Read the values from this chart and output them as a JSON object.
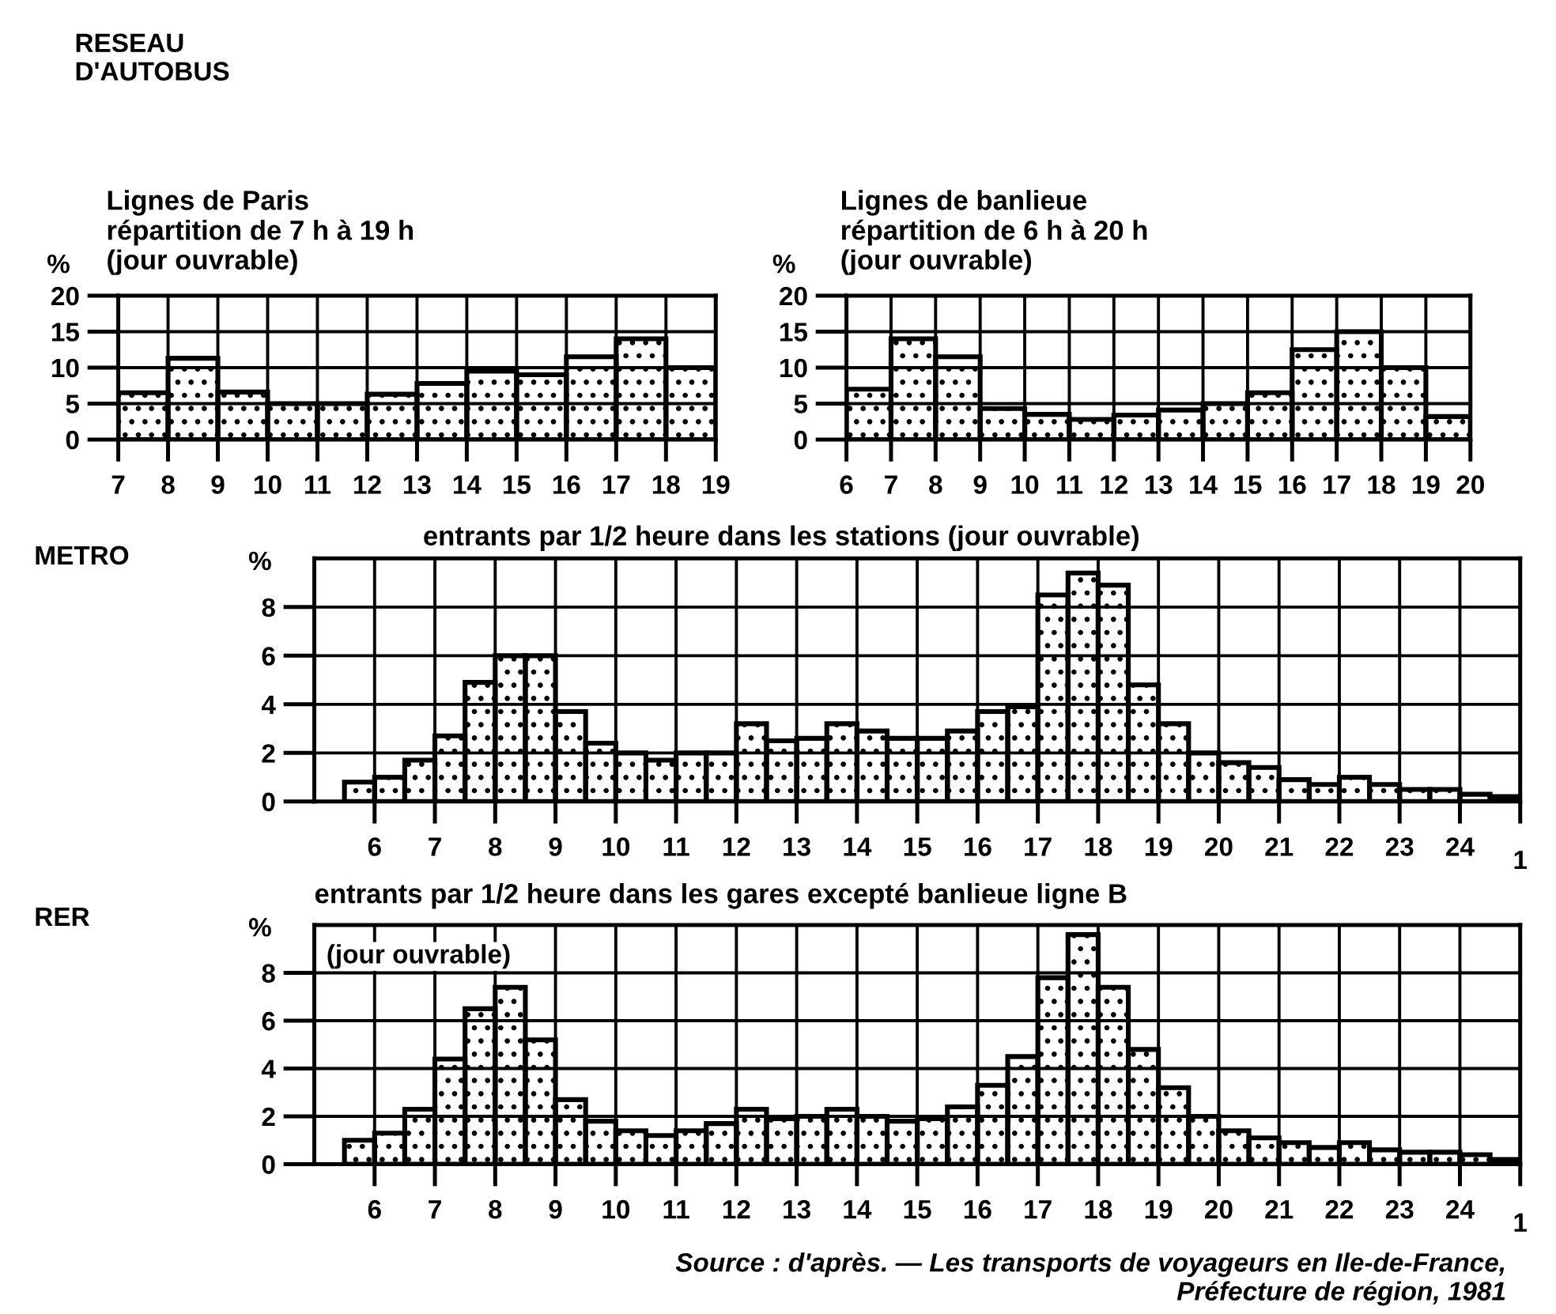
{
  "chart_data": [
    {
      "type": "histogram",
      "title": "Lignes de Paris\nrépartition de 7 h à 19 h\n(jour ouvrable)",
      "ylabel": "%",
      "annotations": [
        "RESEAU\nD'AUTOBUS"
      ],
      "bins": [
        7,
        8,
        9,
        10,
        11,
        12,
        13,
        14,
        15,
        16,
        17,
        18,
        19
      ],
      "values": [
        6.5,
        11.3,
        6.6,
        5,
        5,
        6.3,
        7.8,
        9.5,
        9,
        11.5,
        14,
        10
      ],
      "color": "#000000",
      "xlim": [
        7,
        19
      ],
      "xticks": [
        7,
        8,
        9,
        10,
        11,
        12,
        13,
        14,
        15,
        16,
        17,
        18,
        19
      ],
      "ylim": [
        0,
        20
      ],
      "yticks": [
        0,
        5,
        10,
        15,
        20
      ],
      "grid": true
    },
    {
      "type": "histogram",
      "title": "Lignes de banlieue\nrépartition de 6 h à 20 h\n(jour ouvrable)",
      "ylabel": "%",
      "bins": [
        6,
        7,
        8,
        9,
        10,
        11,
        12,
        13,
        14,
        15,
        16,
        17,
        18,
        19,
        20
      ],
      "values": [
        7,
        14,
        11.5,
        4.3,
        3.5,
        2.8,
        3.4,
        4.1,
        5,
        6.5,
        12.5,
        15,
        10,
        3.2
      ],
      "color": "#000000",
      "xlim": [
        6,
        20
      ],
      "xticks": [
        6,
        7,
        8,
        9,
        10,
        11,
        12,
        13,
        14,
        15,
        16,
        17,
        18,
        19,
        20
      ],
      "ylim": [
        0,
        20
      ],
      "yticks": [
        0,
        5,
        10,
        15,
        20
      ],
      "grid": true
    },
    {
      "type": "histogram",
      "title": "entrants par 1/2 heure dans les stations (jour ouvrable)",
      "ylabel": "%",
      "annotations": [
        "METRO",
        {
          "text": "1",
          "x": 25,
          "y": 0
        }
      ],
      "bins": [
        5.5,
        6,
        6.5,
        7,
        7.5,
        8,
        8.5,
        9,
        9.5,
        10,
        10.5,
        11,
        11.5,
        12,
        12.5,
        13,
        13.5,
        14,
        14.5,
        15,
        15.5,
        16,
        16.5,
        17,
        17.5,
        18,
        18.5,
        19,
        19.5,
        20,
        20.5,
        21,
        21.5,
        22,
        22.5,
        23,
        23.5,
        24,
        24.5,
        25
      ],
      "values": [
        0.8,
        1.0,
        1.7,
        2.7,
        4.9,
        6.0,
        6.0,
        3.7,
        2.4,
        2.0,
        1.7,
        2.0,
        2.0,
        3.2,
        2.5,
        2.6,
        3.2,
        2.9,
        2.6,
        2.6,
        2.9,
        3.7,
        3.9,
        8.5,
        9.4,
        8.9,
        4.8,
        3.2,
        2.0,
        1.6,
        1.4,
        0.9,
        0.7,
        1.0,
        0.7,
        0.5,
        0.5,
        0.3,
        0.2
      ],
      "color": "#000000",
      "xlim": [
        5,
        25
      ],
      "xticks": [
        6,
        7,
        8,
        9,
        10,
        11,
        12,
        13,
        14,
        15,
        16,
        17,
        18,
        19,
        20,
        21,
        22,
        23,
        24,
        {
          "value": 25,
          "label": null
        }
      ],
      "ylim": [
        0,
        10
      ],
      "yticks": [
        0,
        2,
        4,
        6,
        8
      ],
      "grid": true
    },
    {
      "type": "histogram",
      "title": "entrants par 1/2 heure dans les gares excepté banlieue ligne B",
      "ylabel": "%",
      "annotations": [
        "RER",
        "(jour ouvrable)",
        "Source : d'après. — Les transports de voyageurs en Ile-de-France,\nPréfecture de région, 1981",
        {
          "text": "1",
          "x": 25,
          "y": 0
        }
      ],
      "bins": [
        5.5,
        6,
        6.5,
        7,
        7.5,
        8,
        8.5,
        9,
        9.5,
        10,
        10.5,
        11,
        11.5,
        12,
        12.5,
        13,
        13.5,
        14,
        14.5,
        15,
        15.5,
        16,
        16.5,
        17,
        17.5,
        18,
        18.5,
        19,
        19.5,
        20,
        20.5,
        21,
        21.5,
        22,
        22.5,
        23,
        23.5,
        24,
        24.5,
        25
      ],
      "values": [
        1.0,
        1.3,
        2.3,
        4.4,
        6.5,
        7.4,
        5.2,
        2.7,
        1.8,
        1.4,
        1.2,
        1.4,
        1.7,
        2.3,
        1.9,
        2.0,
        2.3,
        2.0,
        1.8,
        1.9,
        2.4,
        3.3,
        4.5,
        7.8,
        9.6,
        7.4,
        4.8,
        3.2,
        2.0,
        1.4,
        1.1,
        0.9,
        0.7,
        0.9,
        0.6,
        0.5,
        0.5,
        0.4,
        0.2
      ],
      "color": "#000000",
      "xlim": [
        5,
        25
      ],
      "xticks": [
        6,
        7,
        8,
        9,
        10,
        11,
        12,
        13,
        14,
        15,
        16,
        17,
        18,
        19,
        20,
        21,
        22,
        23,
        24,
        {
          "value": 25,
          "label": null
        }
      ],
      "ylim": [
        0,
        10
      ],
      "yticks": [
        0,
        2,
        4,
        6,
        8
      ],
      "grid": true
    }
  ]
}
